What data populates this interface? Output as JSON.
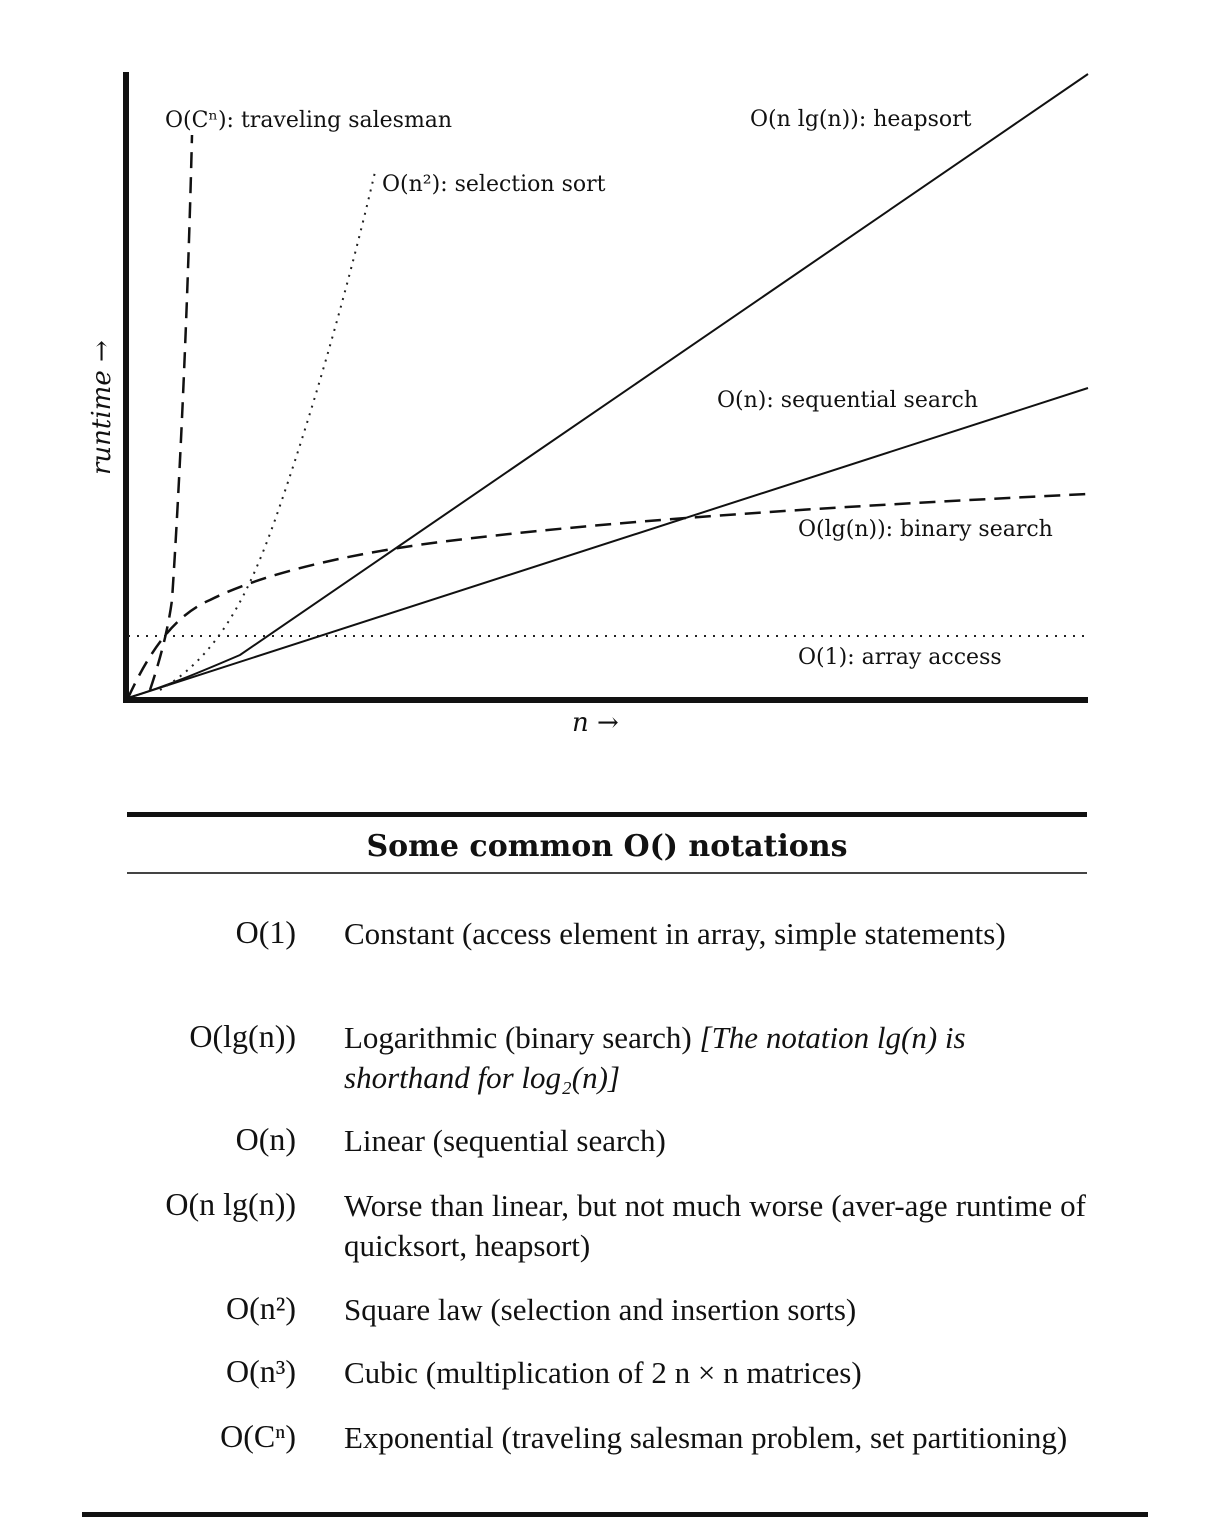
{
  "diagram": {
    "y_axis_label": "runtime →",
    "x_axis_label": "n →",
    "curves": [
      {
        "id": "const",
        "label": "O(1): array access",
        "style": "dotted"
      },
      {
        "id": "log",
        "label": "O(lg(n)): binary search",
        "style": "dashed"
      },
      {
        "id": "lin",
        "label": "O(n): sequential search",
        "style": "solid"
      },
      {
        "id": "nlogn",
        "label": "O(n lg(n)): heapsort",
        "style": "solid"
      },
      {
        "id": "sq",
        "label": "O(n²): selection sort",
        "style": "dotted"
      },
      {
        "id": "exp",
        "label": "O(Cⁿ): traveling salesman",
        "style": "dashed"
      }
    ]
  },
  "table": {
    "title": "Some common O() notations",
    "rows": [
      {
        "notation": "O(1)",
        "desc": "Constant (access element in array, simple statements)"
      },
      {
        "notation": "O(lg(n))",
        "desc": "Logarithmic (binary search)",
        "desc_italic": "[The notation lg(n) is shorthand for log₂(n)]"
      },
      {
        "notation": "O(n)",
        "desc": "Linear (sequential search)"
      },
      {
        "notation": "O(n lg(n))",
        "desc": "Worse than linear, but not much worse (aver-age runtime of quicksort, heapsort)"
      },
      {
        "notation": "O(n²)",
        "desc": "Square law (selection and insertion sorts)"
      },
      {
        "notation": "O(n³)",
        "desc": "Cubic (multiplication of 2 n × n matrices)"
      },
      {
        "notation": "O(Cⁿ)",
        "desc": "Exponential (traveling salesman problem, set partitioning)"
      }
    ]
  }
}
